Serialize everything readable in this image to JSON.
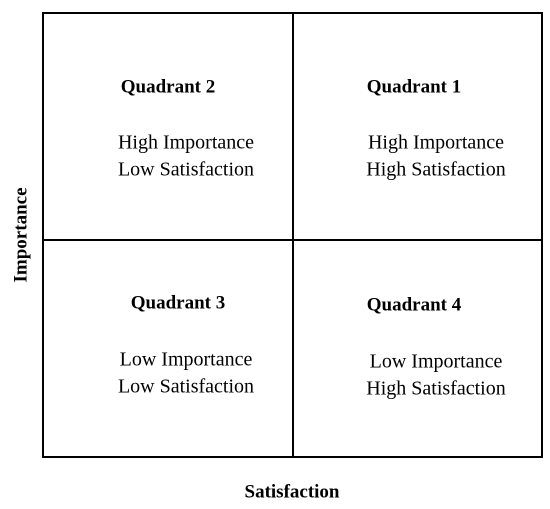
{
  "axes": {
    "x_label": "Satisfaction",
    "y_label": "Importance"
  },
  "quadrants": [
    {
      "title": "Quadrant 2",
      "lines": [
        "High Importance",
        "Low Satisfaction"
      ]
    },
    {
      "title": "Quadrant 1",
      "lines": [
        "High Importance",
        "High Satisfaction"
      ]
    },
    {
      "title": "Quadrant 3",
      "lines": [
        "Low Importance",
        "Low Satisfaction"
      ]
    },
    {
      "title": "Quadrant 4",
      "lines": [
        "Low Importance",
        "High Satisfaction"
      ]
    }
  ]
}
